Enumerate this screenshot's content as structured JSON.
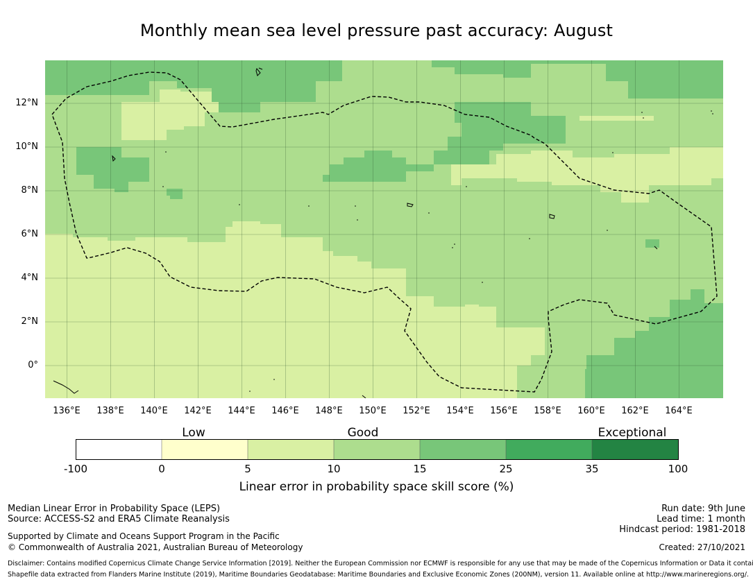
{
  "title": "Monthly mean sea level pressure past accuracy: August",
  "map": {
    "lat_labels": [
      "12°N",
      "10°N",
      "8°N",
      "6°N",
      "4°N",
      "2°N",
      "0°"
    ],
    "lon_labels": [
      "136°E",
      "138°E",
      "140°E",
      "142°E",
      "144°E",
      "146°E",
      "148°E",
      "150°E",
      "152°E",
      "154°E",
      "156°E",
      "158°E",
      "160°E",
      "162°E",
      "164°E"
    ],
    "extent": {
      "lon_min": 135.0,
      "lon_max": 166.0,
      "lat_min": -1.5,
      "lat_max": 14.0
    },
    "skill_colors": {
      "below_0": "#ffffff",
      "0_5": "#ffffcc",
      "5_10": "#d9f0a3",
      "10_15": "#addd8e",
      "15_25": "#78c679",
      "25_35": "#41ab5d",
      "35_100": "#238443"
    },
    "boundary": "dashed-eez-outline"
  },
  "colorbar": {
    "categories": [
      "Low",
      "Good",
      "Exceptional"
    ],
    "ticks": [
      "-100",
      "0",
      "5",
      "10",
      "15",
      "25",
      "35",
      "100"
    ],
    "colors": [
      "#ffffff",
      "#ffffcc",
      "#d9f0a3",
      "#addd8e",
      "#78c679",
      "#41ab5d",
      "#238443"
    ],
    "label": "Linear error in probability space skill score (%)"
  },
  "footer": {
    "left1": "Median Linear Error in Probability Space (LEPS)",
    "left2": "Source: ACCESS-S2 and ERA5 Climate Reanalysis",
    "left3": "Supported by Climate and Oceans Support Program in the Pacific",
    "left4": "© Commonwealth of Australia 2021, Australian Bureau of Meteorology",
    "right1": "Run date: 9th June",
    "right2": "Lead time: 1 month",
    "right3": "Hindcast period: 1981-2018",
    "right4": "Created: 27/10/2021",
    "disclaimer": "Disclaimer: Contains modified Copernicus Climate Change Service Information [2019]. Neither the European Commission nor ECMWF is responsible for any use that may be made of the Copernicus Information or Data it contains.",
    "shapefile": "Shapefile data extracted from Flanders Marine Institute (2019), Maritime Boundaries Geodatabase: Maritime Boundaries and Exclusive Economic Zones (200NM), version 11. Available online at http://www.marineregions.org/."
  }
}
